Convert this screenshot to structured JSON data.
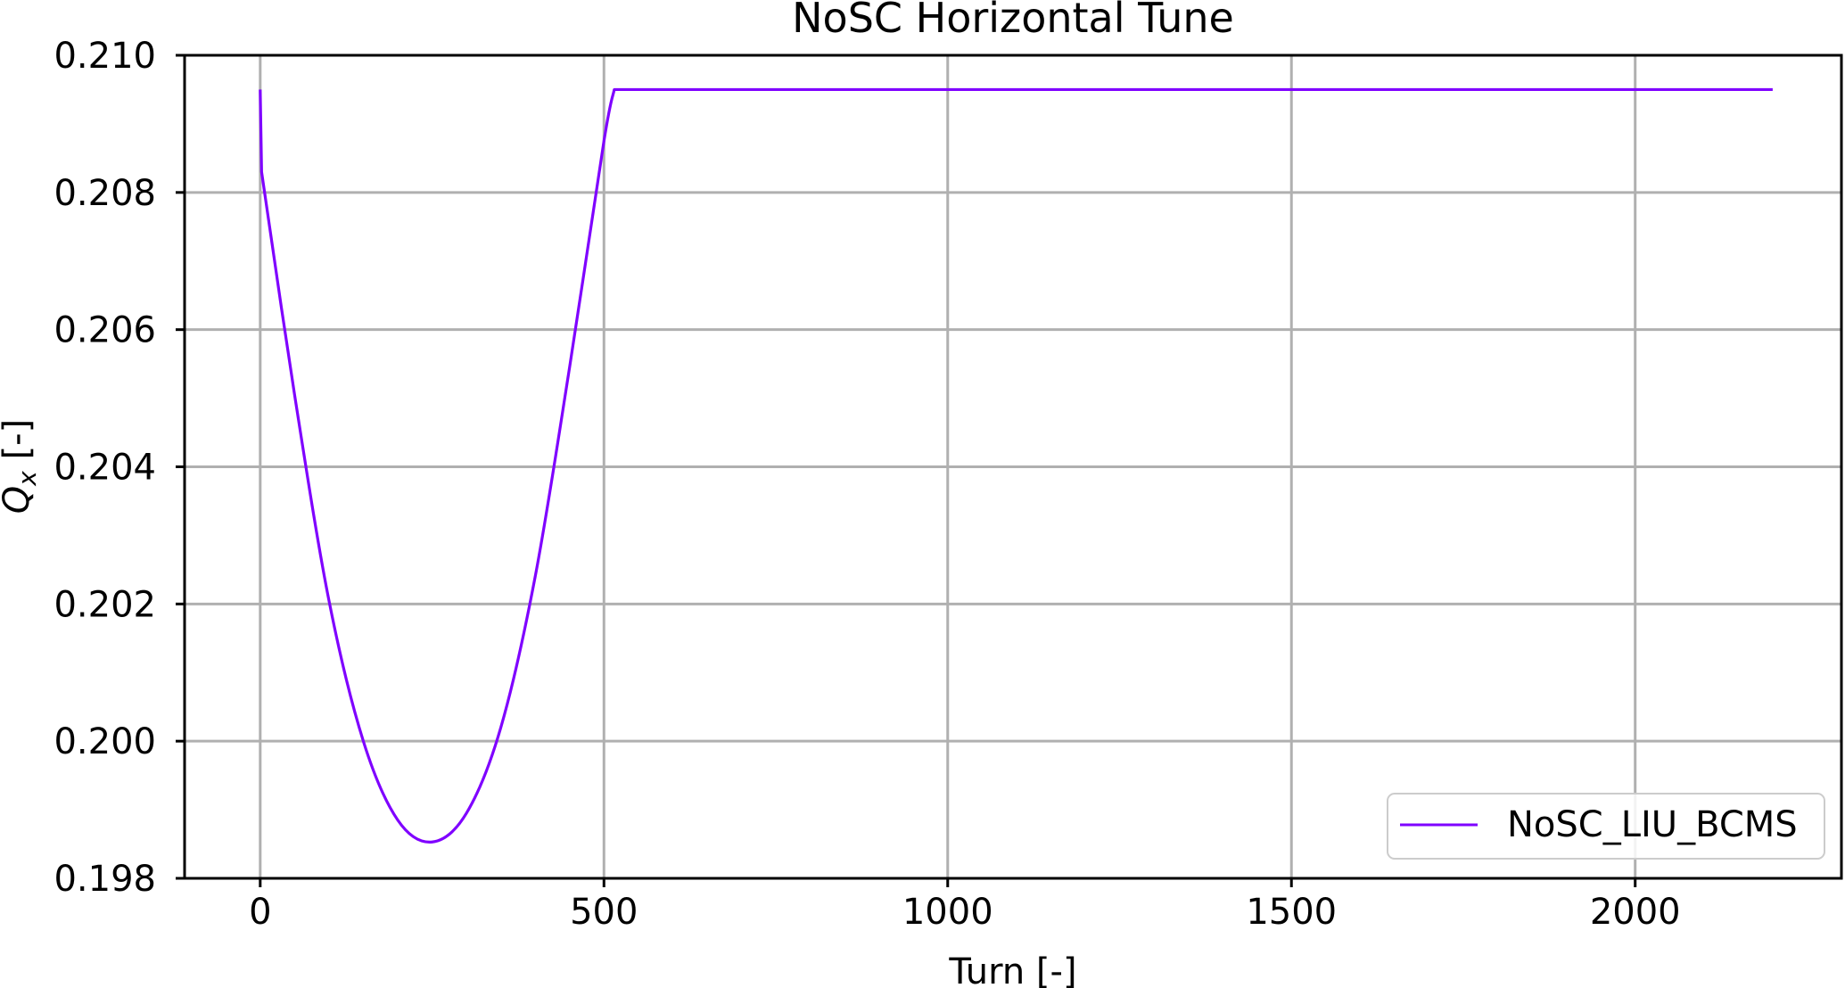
{
  "chart_data": {
    "type": "line",
    "title": "NoSC Horizontal Tune",
    "xlabel": "Turn [-]",
    "ylabel_main": "Q",
    "ylabel_sub": "x",
    "ylabel_suffix": " [-]",
    "xlim": [
      -110,
      2300
    ],
    "ylim": [
      0.198,
      0.21
    ],
    "x_ticks": [
      0,
      500,
      1000,
      1500,
      2000
    ],
    "x_tick_labels": [
      "0",
      "500",
      "1000",
      "1500",
      "2000"
    ],
    "y_ticks": [
      0.198,
      0.2,
      0.202,
      0.204,
      0.206,
      0.208,
      0.21
    ],
    "y_tick_labels": [
      "0.198",
      "0.200",
      "0.202",
      "0.204",
      "0.206",
      "0.208",
      "0.210"
    ],
    "grid": true,
    "legend_position": "lower-right",
    "series": [
      {
        "name": "NoSC_LIU_BCMS",
        "color": "#7f00ff",
        "x": [
          0,
          2,
          50,
          100,
          150,
          200,
          250,
          300,
          350,
          400,
          450,
          500,
          515,
          2200
        ],
        "y": [
          0.2095,
          0.2083,
          0.20505,
          0.20205,
          0.2,
          0.19885,
          0.19853,
          0.19895,
          0.2002,
          0.2024,
          0.20545,
          0.20875,
          0.2095,
          0.2095
        ]
      }
    ]
  }
}
